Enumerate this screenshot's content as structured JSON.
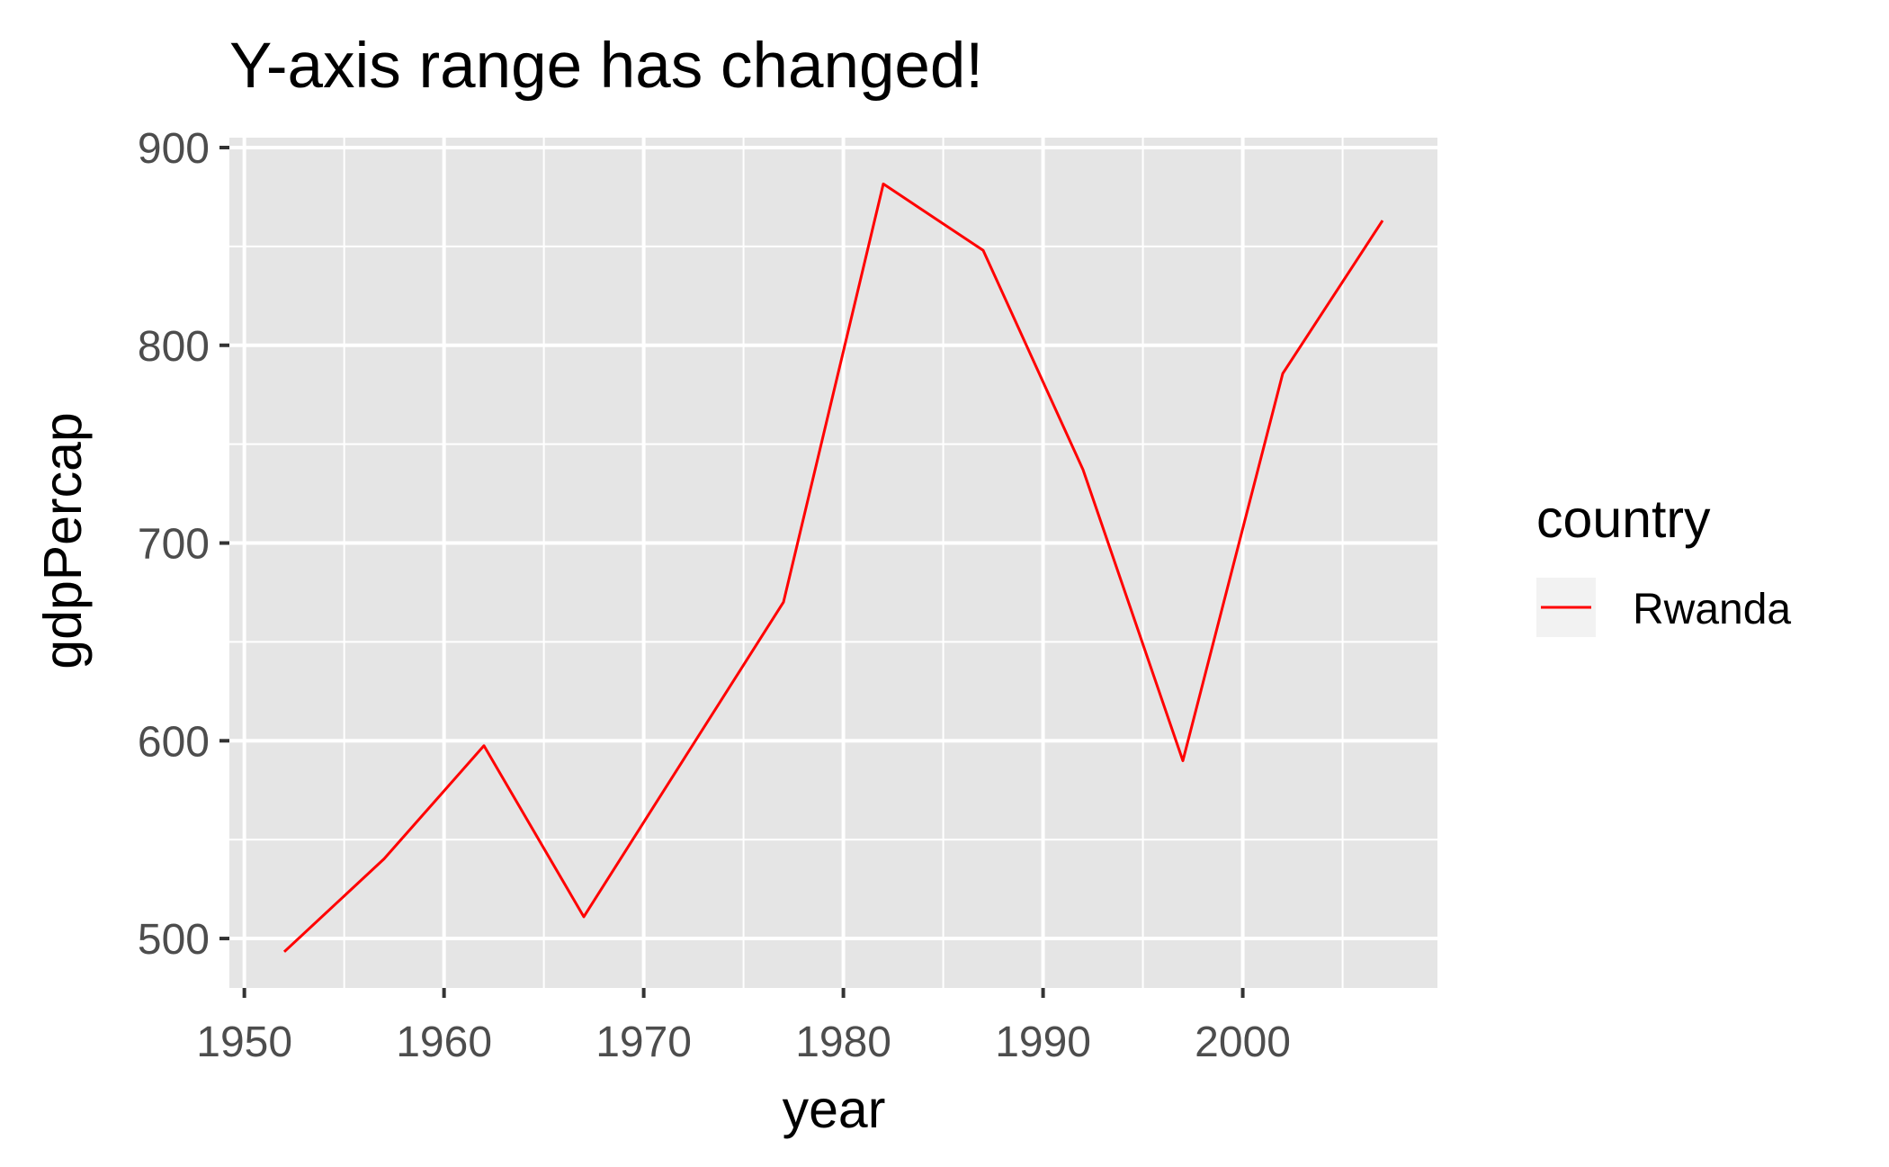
{
  "chart_data": {
    "type": "line",
    "title": "Y-axis range has changed!",
    "xlabel": "year",
    "ylabel": "gdpPercap",
    "xlim": [
      1949.25,
      2009.75
    ],
    "ylim": [
      475,
      905
    ],
    "x_ticks": [
      1950,
      1960,
      1970,
      1980,
      1990,
      2000
    ],
    "y_ticks": [
      500,
      600,
      700,
      800,
      900
    ],
    "grid": true,
    "panel_background": "#e5e5e5",
    "legend": {
      "title": "country",
      "placement": "right"
    },
    "series": [
      {
        "name": "Rwanda",
        "color": "#ff0000",
        "x": [
          1952,
          1957,
          1962,
          1967,
          1972,
          1977,
          1982,
          1987,
          1992,
          1997,
          2002,
          2007
        ],
        "values": [
          493.3,
          540.3,
          597.5,
          511.0,
          590.6,
          670.1,
          881.6,
          848.0,
          737.1,
          589.9,
          785.7,
          863.1
        ]
      }
    ]
  }
}
